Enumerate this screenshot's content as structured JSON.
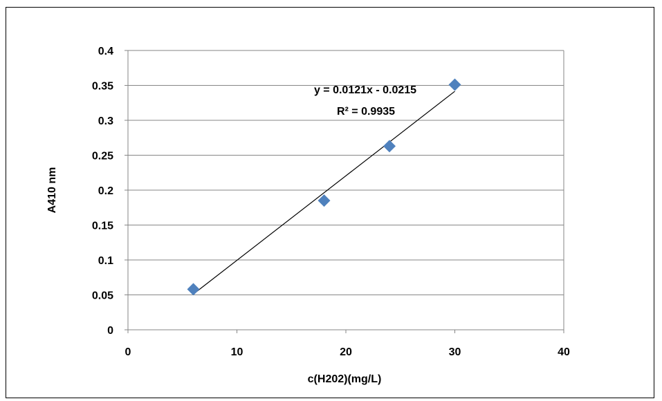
{
  "chart_data": {
    "type": "scatter",
    "title": "",
    "xlabel": "c(H202)(mg/L)",
    "ylabel": "A410 nm",
    "xlim": [
      0,
      40
    ],
    "ylim": [
      0,
      0.4
    ],
    "x_ticks": [
      "0",
      "10",
      "20",
      "30",
      "40"
    ],
    "y_ticks": [
      "0",
      "0.05",
      "0.1",
      "0.15",
      "0.2",
      "0.25",
      "0.3",
      "0.35",
      "0.4"
    ],
    "grid": "horizontal",
    "series": [
      {
        "x": [
          6,
          18,
          24,
          30
        ],
        "y": [
          0.058,
          0.185,
          0.263,
          0.351
        ],
        "marker": "diamond",
        "color": "#4f81bd"
      }
    ],
    "trendline": {
      "type": "linear",
      "slope": 0.0121,
      "intercept": -0.0215,
      "x_range": [
        6,
        30
      ],
      "color": "#000000",
      "equation": "y = 0.0121x - 0.0215",
      "r_squared": "R² = 0.9935"
    }
  }
}
